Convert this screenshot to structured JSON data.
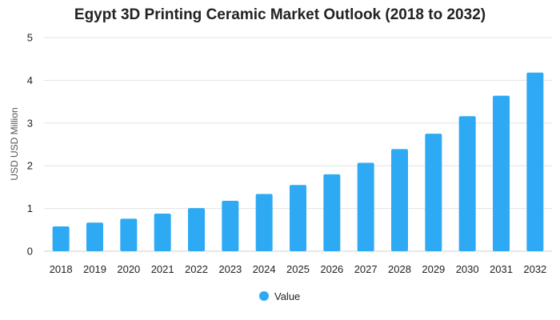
{
  "chart_data": {
    "type": "bar",
    "title": "Egypt 3D Printing Ceramic Market Outlook (2018 to 2032)",
    "xlabel": "",
    "ylabel": "USD USD Million",
    "categories": [
      "2018",
      "2019",
      "2020",
      "2021",
      "2022",
      "2023",
      "2024",
      "2025",
      "2026",
      "2027",
      "2028",
      "2029",
      "2030",
      "2031",
      "2032"
    ],
    "series": [
      {
        "name": "Value",
        "values": [
          0.58,
          0.67,
          0.76,
          0.88,
          1.01,
          1.18,
          1.34,
          1.55,
          1.8,
          2.07,
          2.39,
          2.75,
          3.16,
          3.64,
          4.18
        ]
      }
    ],
    "ylim": [
      0,
      5
    ],
    "yticks": [
      "0",
      "1",
      "2",
      "3",
      "4",
      "5"
    ],
    "grid": true,
    "legend_position": "bottom",
    "bar_color": "#2eaaf4"
  }
}
